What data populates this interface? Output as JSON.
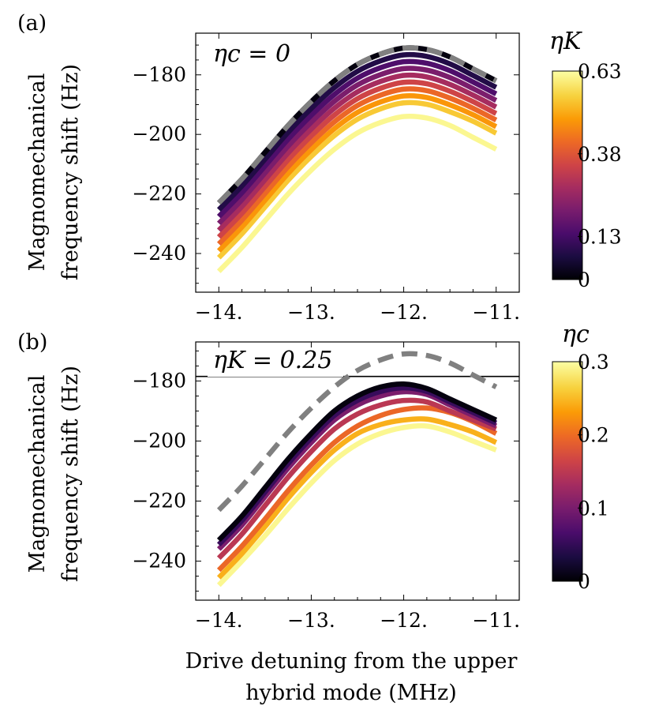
{
  "figure": {
    "xlabel_line1": "Drive detuning from the upper",
    "xlabel_line2": "hybrid mode (MHz)",
    "colors": {
      "baseline_dashed": "#808080",
      "reference_line": "#000000",
      "colormap": [
        "#000004",
        "#1b0c41",
        "#4a0c6b",
        "#781c6d",
        "#a52c60",
        "#cf4446",
        "#ed6925",
        "#fb9b06",
        "#f7d13d",
        "#fcffa4"
      ]
    }
  },
  "chart_data": [
    {
      "type": "line",
      "panel_label": "(a)",
      "annotation": "ηc = 0",
      "ylabel_line1": "Magnomechanical",
      "ylabel_line2": "frequency shift (Hz)",
      "xlim": [
        -14.25,
        -10.75
      ],
      "ylim": [
        -253,
        -166
      ],
      "xticks": [
        -14,
        -13,
        -12,
        -11
      ],
      "xtick_labels": [
        "−14.",
        "−13.",
        "−12.",
        "−11."
      ],
      "yticks": [
        -240,
        -220,
        -200,
        -180
      ],
      "ytick_labels": [
        "−240",
        "−220",
        "−200",
        "−180"
      ],
      "x": [
        -14.0,
        -13.75,
        -13.5,
        -13.25,
        -13.0,
        -12.75,
        -12.5,
        -12.25,
        -12.0,
        -11.75,
        -11.5,
        -11.25,
        -11.0
      ],
      "colorbar": {
        "label": "ηK",
        "min": 0,
        "max": 0.63,
        "ticks": [
          0,
          0.13,
          0.38,
          0.63
        ],
        "tick_labels": [
          "0",
          "0.13",
          "0.38",
          "0.63"
        ]
      },
      "dashed_series": {
        "name": "reference (dashed)",
        "values": [
          -223,
          -215,
          -206,
          -197,
          -189,
          -182,
          -176.5,
          -173,
          -171,
          -171.5,
          -174,
          -178,
          -182
        ]
      },
      "series": [
        {
          "name": "ηK = 0.00",
          "values": [
            -223,
            -215,
            -206,
            -197,
            -189,
            -182,
            -176.5,
            -173,
            -171,
            -171.5,
            -174,
            -178,
            -182
          ]
        },
        {
          "name": "ηK = 0.07",
          "values": [
            -225.3,
            -217.3,
            -208.3,
            -199.3,
            -191.3,
            -184.3,
            -178.8,
            -175.3,
            -173.3,
            -173.8,
            -176.3,
            -180.2,
            -184.2
          ]
        },
        {
          "name": "ηK = 0.14",
          "values": [
            -227.6,
            -219.6,
            -210.6,
            -201.6,
            -193.6,
            -186.6,
            -181.1,
            -177.6,
            -175.6,
            -176.1,
            -178.6,
            -182.4,
            -186.4
          ]
        },
        {
          "name": "ηK = 0.21",
          "values": [
            -229.9,
            -221.9,
            -212.9,
            -203.9,
            -195.9,
            -188.9,
            -183.4,
            -179.9,
            -177.9,
            -178.4,
            -180.9,
            -184.6,
            -188.6
          ]
        },
        {
          "name": "ηK = 0.28",
          "values": [
            -232.2,
            -224.2,
            -215.2,
            -206.2,
            -198.2,
            -191.2,
            -185.7,
            -182.2,
            -180.2,
            -180.7,
            -183.2,
            -186.8,
            -190.8
          ]
        },
        {
          "name": "ηK = 0.35",
          "values": [
            -234.5,
            -226.5,
            -217.5,
            -208.5,
            -200.5,
            -193.5,
            -188.0,
            -184.5,
            -182.5,
            -183.0,
            -185.5,
            -189.0,
            -193.0
          ]
        },
        {
          "name": "ηK = 0.42",
          "values": [
            -236.8,
            -228.8,
            -219.8,
            -210.8,
            -202.8,
            -195.8,
            -190.3,
            -186.8,
            -184.8,
            -185.3,
            -187.8,
            -191.2,
            -195.2
          ]
        },
        {
          "name": "ηK = 0.49",
          "values": [
            -239.1,
            -231.1,
            -222.1,
            -213.1,
            -205.1,
            -198.1,
            -192.6,
            -189.1,
            -187.1,
            -187.6,
            -190.1,
            -193.4,
            -197.4
          ]
        },
        {
          "name": "ηK = 0.56",
          "values": [
            -241.4,
            -233.4,
            -224.4,
            -215.4,
            -207.4,
            -200.4,
            -194.9,
            -191.4,
            -189.4,
            -189.9,
            -192.4,
            -195.6,
            -199.6
          ]
        },
        {
          "name": "ηK = 0.63",
          "values": [
            -246.0,
            -238.0,
            -229.0,
            -220.0,
            -212.0,
            -205.0,
            -199.5,
            -196.0,
            -194.0,
            -194.5,
            -197.0,
            -201.0,
            -205.0
          ]
        }
      ]
    },
    {
      "type": "line",
      "panel_label": "(b)",
      "annotation": "ηK = 0.25",
      "ylabel_line1": "Magnomechanical",
      "ylabel_line2": "frequency shift (Hz)",
      "xlim": [
        -14.25,
        -10.75
      ],
      "ylim": [
        -253,
        -167
      ],
      "xticks": [
        -14,
        -13,
        -12,
        -11
      ],
      "xtick_labels": [
        "−14.",
        "−13.",
        "−12.",
        "−11."
      ],
      "yticks": [
        -240,
        -220,
        -200,
        -180
      ],
      "ytick_labels": [
        "−240",
        "−220",
        "−200",
        "−180"
      ],
      "x": [
        -14.0,
        -13.75,
        -13.5,
        -13.25,
        -13.0,
        -12.75,
        -12.5,
        -12.25,
        -12.0,
        -11.75,
        -11.5,
        -11.25,
        -11.0
      ],
      "reference_line_y": -178.5,
      "colorbar": {
        "label": "ηc",
        "min": 0,
        "max": 0.3,
        "ticks": [
          0,
          0.1,
          0.2,
          0.3
        ],
        "tick_labels": [
          "0",
          "0.1",
          "0.2",
          "0.3"
        ]
      },
      "dashed_series": {
        "name": "reference (dashed)",
        "values": [
          -223,
          -215,
          -206,
          -197,
          -189,
          -182,
          -176.5,
          -173,
          -171,
          -171.5,
          -174,
          -178,
          -182
        ]
      },
      "series": [
        {
          "name": "ηc = 0.00",
          "values": [
            -233,
            -225,
            -215.5,
            -206,
            -197.5,
            -190,
            -185,
            -182,
            -181,
            -182.5,
            -186,
            -189.5,
            -193
          ]
        },
        {
          "name": "ηc = 0.05",
          "values": [
            -234.5,
            -226.5,
            -217,
            -207.5,
            -199,
            -191.5,
            -186.5,
            -183.5,
            -182.3,
            -183.5,
            -187,
            -190.5,
            -194
          ]
        },
        {
          "name": "ηc = 0.10",
          "values": [
            -236,
            -228,
            -218.5,
            -209,
            -200.5,
            -193,
            -188,
            -185,
            -183.6,
            -184.5,
            -188,
            -191.5,
            -195
          ]
        },
        {
          "name": "ηc = 0.15",
          "values": [
            -239,
            -231,
            -221.5,
            -212,
            -203.5,
            -196,
            -191,
            -188,
            -186.5,
            -187,
            -190,
            -193,
            -196
          ]
        },
        {
          "name": "ηc = 0.20",
          "values": [
            -243,
            -235,
            -226,
            -216.5,
            -208,
            -200.5,
            -195,
            -191.5,
            -189.5,
            -189,
            -190.5,
            -193.5,
            -197.5
          ]
        },
        {
          "name": "ηc = 0.25",
          "values": [
            -245.5,
            -237.5,
            -228.5,
            -219,
            -210.5,
            -203,
            -197.5,
            -194.5,
            -193,
            -192.7,
            -194.5,
            -197,
            -200.5
          ]
        },
        {
          "name": "ηc = 0.30",
          "values": [
            -248,
            -240,
            -231.5,
            -222.5,
            -214,
            -206.5,
            -201,
            -197.5,
            -195.5,
            -195,
            -197,
            -200,
            -203
          ]
        }
      ]
    }
  ]
}
